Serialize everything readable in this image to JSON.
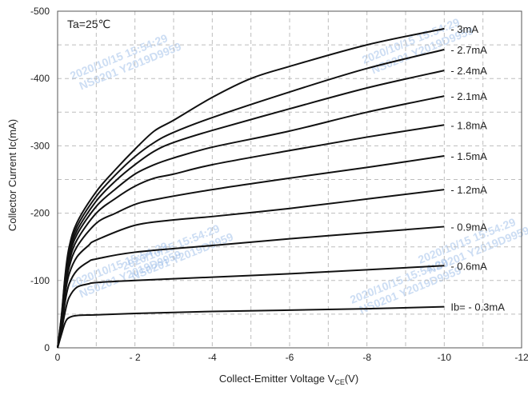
{
  "chart_data": {
    "type": "line",
    "title": "",
    "annotation": "Ta=25℃",
    "xlabel": {
      "main": "Collect-Emitter Voltage  V",
      "sub": "CE",
      "unit": "(V)"
    },
    "ylabel": "Collector Current   Ic(mA)",
    "xlim": [
      0,
      -12
    ],
    "ylim": [
      0,
      -500
    ],
    "x_ticks": [
      {
        "v": 0,
        "label": "0"
      },
      {
        "v": -2,
        "label": "- 2"
      },
      {
        "v": -4,
        "label": "-4"
      },
      {
        "v": -6,
        "label": "-6"
      },
      {
        "v": -8,
        "label": "-8"
      },
      {
        "v": -10,
        "label": "-10"
      },
      {
        "v": -12,
        "label": "-12"
      }
    ],
    "y_ticks": [
      {
        "v": 0,
        "label": "0"
      },
      {
        "v": -100,
        "label": "-100"
      },
      {
        "v": -200,
        "label": "-200"
      },
      {
        "v": -300,
        "label": "-300"
      },
      {
        "v": -400,
        "label": "-400"
      },
      {
        "v": -500,
        "label": "-500"
      }
    ],
    "grid": true,
    "series": [
      {
        "name": "Ib= - 0.3mA",
        "x": [
          0,
          -0.1,
          -0.2,
          -0.3,
          -0.5,
          -1,
          -2,
          -4,
          -6,
          -8,
          -10
        ],
        "y": [
          0,
          -20,
          -38,
          -45,
          -48,
          -49,
          -51,
          -54,
          -56,
          -58,
          -61
        ]
      },
      {
        "name": "- 0.6mA",
        "x": [
          0,
          -0.1,
          -0.2,
          -0.3,
          -0.5,
          -0.8,
          -1,
          -2,
          -4,
          -6,
          -8,
          -10
        ],
        "y": [
          0,
          -25,
          -55,
          -75,
          -90,
          -95,
          -97,
          -100,
          -105,
          -110,
          -116,
          -122
        ]
      },
      {
        "name": "- 0.9mA",
        "x": [
          0,
          -0.1,
          -0.2,
          -0.3,
          -0.5,
          -0.8,
          -1,
          -2,
          -4,
          -6,
          -8,
          -10
        ],
        "y": [
          0,
          -30,
          -70,
          -95,
          -115,
          -128,
          -132,
          -142,
          -152,
          -162,
          -171,
          -180
        ]
      },
      {
        "name": "- 1.2mA",
        "x": [
          0,
          -0.1,
          -0.2,
          -0.3,
          -0.5,
          -0.8,
          -1,
          -2,
          -3,
          -4,
          -6,
          -8,
          -10
        ],
        "y": [
          0,
          -35,
          -82,
          -110,
          -135,
          -152,
          -160,
          -182,
          -190,
          -195,
          -207,
          -221,
          -235
        ]
      },
      {
        "name": "- 1.5mA",
        "x": [
          0,
          -0.1,
          -0.2,
          -0.3,
          -0.5,
          -1,
          -1.5,
          -2,
          -2.5,
          -4,
          -6,
          -8,
          -10
        ],
        "y": [
          0,
          -38,
          -90,
          -120,
          -150,
          -185,
          -200,
          -213,
          -220,
          -235,
          -252,
          -268,
          -285
        ]
      },
      {
        "name": "- 1.8mA",
        "x": [
          0,
          -0.1,
          -0.2,
          -0.3,
          -0.5,
          -1,
          -1.5,
          -2,
          -2.5,
          -3,
          -4,
          -6,
          -8,
          -10
        ],
        "y": [
          0,
          -40,
          -95,
          -128,
          -160,
          -200,
          -222,
          -240,
          -252,
          -258,
          -272,
          -293,
          -313,
          -331
        ]
      },
      {
        "name": "- 2.1mA",
        "x": [
          0,
          -0.1,
          -0.2,
          -0.3,
          -0.5,
          -1,
          -1.5,
          -2,
          -2.5,
          -3,
          -4,
          -6,
          -8,
          -10
        ],
        "y": [
          0,
          -42,
          -100,
          -135,
          -168,
          -210,
          -236,
          -258,
          -272,
          -282,
          -298,
          -322,
          -350,
          -374
        ]
      },
      {
        "name": "- 2.4mA",
        "x": [
          0,
          -0.1,
          -0.2,
          -0.3,
          -0.5,
          -1,
          -1.5,
          -2,
          -2.5,
          -3,
          -4,
          -6,
          -8,
          -10
        ],
        "y": [
          0,
          -44,
          -104,
          -140,
          -174,
          -218,
          -248,
          -272,
          -292,
          -305,
          -323,
          -355,
          -386,
          -412
        ]
      },
      {
        "name": "- 2.7mA",
        "x": [
          0,
          -0.1,
          -0.2,
          -0.3,
          -0.5,
          -1,
          -1.5,
          -2,
          -2.5,
          -3,
          -4,
          -6,
          -8,
          -10
        ],
        "y": [
          0,
          -46,
          -107,
          -145,
          -180,
          -225,
          -257,
          -284,
          -305,
          -320,
          -342,
          -380,
          -415,
          -443
        ]
      },
      {
        "name": "- 3mA",
        "x": [
          0,
          -0.1,
          -0.2,
          -0.3,
          -0.5,
          -1,
          -1.5,
          -2,
          -2.5,
          -3,
          -4,
          -5,
          -6,
          -8,
          -10
        ],
        "y": [
          0,
          -48,
          -110,
          -150,
          -186,
          -232,
          -265,
          -295,
          -322,
          -338,
          -372,
          -400,
          -418,
          -450,
          -474
        ]
      }
    ],
    "watermarks": [
      "2020/10/15 15:54:29",
      "NS0201 Y2019D9959"
    ]
  }
}
